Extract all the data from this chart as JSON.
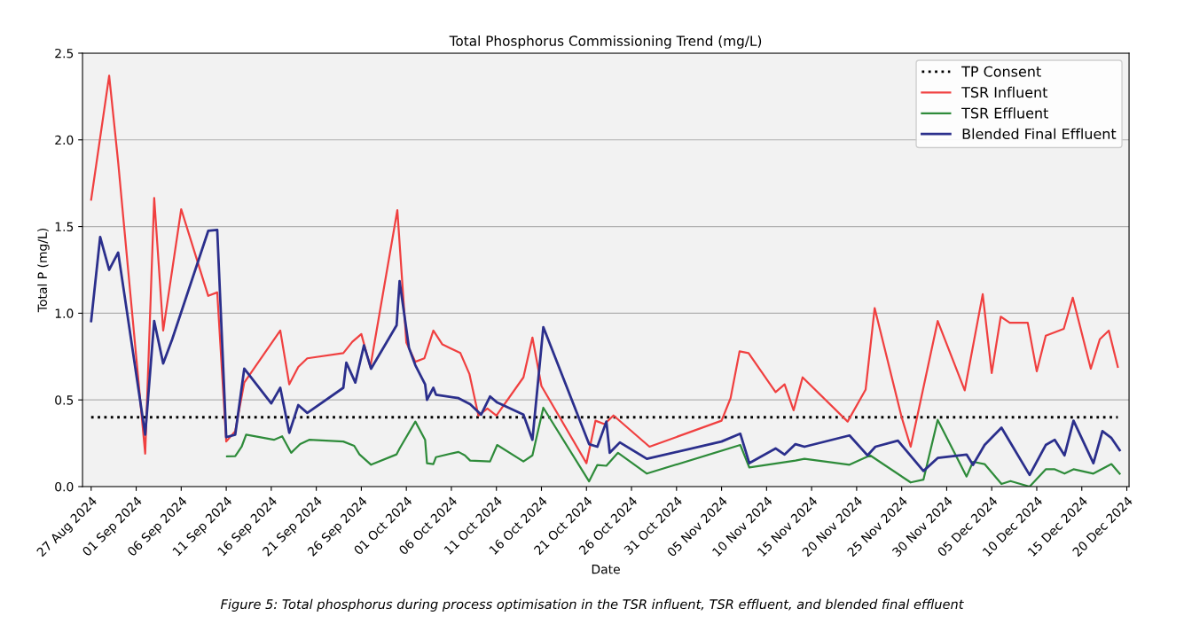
{
  "chart_data": {
    "type": "line",
    "title": "Total Phosphorus Commissioning Trend (mg/L)",
    "xlabel": "Date",
    "ylabel": "Total P (mg/L)",
    "annotations": [
      "Figure 5: Total phosphorus during process optimisation in the TSR influent, TSR effluent, and blended final effluent"
    ],
    "xlim": [
      "2024-08-26T01:00",
      "2024-12-20T06:00"
    ],
    "ylim": [
      0,
      2.5
    ],
    "xticks": [
      {
        "value": "2024-08-27",
        "label": "27 Aug 2024"
      },
      {
        "value": "2024-09-01",
        "label": "01 Sep 2024"
      },
      {
        "value": "2024-09-06",
        "label": "06 Sep 2024"
      },
      {
        "value": "2024-09-11",
        "label": "11 Sep 2024"
      },
      {
        "value": "2024-09-16",
        "label": "16 Sep 2024"
      },
      {
        "value": "2024-09-21",
        "label": "21 Sep 2024"
      },
      {
        "value": "2024-09-26",
        "label": "26 Sep 2024"
      },
      {
        "value": "2024-10-01",
        "label": "01 Oct 2024"
      },
      {
        "value": "2024-10-06",
        "label": "06 Oct 2024"
      },
      {
        "value": "2024-10-11",
        "label": "11 Oct 2024"
      },
      {
        "value": "2024-10-16",
        "label": "16 Oct 2024"
      },
      {
        "value": "2024-10-21",
        "label": "21 Oct 2024"
      },
      {
        "value": "2024-10-26",
        "label": "26 Oct 2024"
      },
      {
        "value": "2024-10-31",
        "label": "31 Oct 2024"
      },
      {
        "value": "2024-11-05",
        "label": "05 Nov 2024"
      },
      {
        "value": "2024-11-10",
        "label": "10 Nov 2024"
      },
      {
        "value": "2024-11-15",
        "label": "15 Nov 2024"
      },
      {
        "value": "2024-11-20",
        "label": "20 Nov 2024"
      },
      {
        "value": "2024-11-25",
        "label": "25 Nov 2024"
      },
      {
        "value": "2024-11-30",
        "label": "30 Nov 2024"
      },
      {
        "value": "2024-12-05",
        "label": "05 Dec 2024"
      },
      {
        "value": "2024-12-10",
        "label": "10 Dec 2024"
      },
      {
        "value": "2024-12-15",
        "label": "15 Dec 2024"
      },
      {
        "value": "2024-12-20",
        "label": "20 Dec 2024"
      }
    ],
    "yticks": [
      {
        "value": 0,
        "label": "0.0"
      },
      {
        "value": 0.5,
        "label": "0.5"
      },
      {
        "value": 1,
        "label": "1.0"
      },
      {
        "value": 1.5,
        "label": "1.5"
      },
      {
        "value": 2,
        "label": "2.0"
      },
      {
        "value": 2.5,
        "label": "2.5"
      }
    ],
    "grid": "y",
    "legend": "top right",
    "marker": "none",
    "series": [
      {
        "name": "TP Consent",
        "color": "#000000",
        "line_style": "dotted",
        "x": [
          "2024-08-27",
          "2024-12-19"
        ],
        "values": [
          0.4,
          0.4
        ]
      },
      {
        "name": "TSR Influent",
        "color": "#f04040",
        "line_style": "solid",
        "x": [
          "2024-08-27",
          "2024-08-29",
          "2024-08-30",
          "2024-09-02",
          "2024-09-03",
          "2024-09-04",
          "2024-09-06",
          "2024-09-09",
          "2024-09-10",
          "2024-09-11",
          "2024-09-12",
          "2024-09-13",
          "2024-09-17",
          "2024-09-18",
          "2024-09-19",
          "2024-09-20",
          "2024-09-24",
          "2024-09-25",
          "2024-09-26",
          "2024-09-27",
          "2024-09-30",
          "2024-10-01",
          "2024-10-02",
          "2024-10-03",
          "2024-10-04",
          "2024-10-05",
          "2024-10-07",
          "2024-10-08",
          "2024-10-09",
          "2024-10-10",
          "2024-10-11",
          "2024-10-14",
          "2024-10-15",
          "2024-10-16",
          "2024-10-21",
          "2024-10-22",
          "2024-10-23",
          "2024-10-24",
          "2024-10-28",
          "2024-11-05",
          "2024-11-06",
          "2024-11-07",
          "2024-11-08",
          "2024-11-11",
          "2024-11-12",
          "2024-11-13",
          "2024-11-14",
          "2024-11-19",
          "2024-11-21",
          "2024-11-22",
          "2024-11-25",
          "2024-11-26",
          "2024-11-27",
          "2024-11-29",
          "2024-12-02",
          "2024-12-04",
          "2024-12-05",
          "2024-12-06",
          "2024-12-07",
          "2024-12-09",
          "2024-12-10",
          "2024-12-11",
          "2024-12-13",
          "2024-12-14",
          "2024-12-16",
          "2024-12-17",
          "2024-12-18",
          "2024-12-19"
        ],
        "values": [
          1.655,
          2.37,
          1.87,
          0.19,
          1.665,
          0.9,
          1.6,
          1.1,
          1.12,
          0.26,
          0.32,
          0.6,
          0.9,
          0.59,
          0.69,
          0.74,
          0.77,
          0.835,
          0.88,
          0.69,
          1.595,
          0.83,
          0.72,
          0.74,
          0.9,
          0.82,
          0.77,
          0.65,
          0.41,
          0.45,
          0.41,
          0.63,
          0.86,
          0.58,
          0.135,
          0.38,
          0.36,
          0.41,
          0.23,
          0.38,
          0.51,
          0.78,
          0.77,
          0.545,
          0.59,
          0.44,
          0.63,
          0.375,
          0.56,
          1.03,
          0.4,
          0.23,
          0.47,
          0.955,
          0.555,
          1.11,
          0.655,
          0.98,
          0.945,
          0.945,
          0.665,
          0.87,
          0.91,
          1.09,
          0.68,
          0.85,
          0.9,
          0.69
        ]
      },
      {
        "name": "TSR Effluent",
        "color": "#2e8b3a",
        "line_style": "solid",
        "x": [
          "2024-09-11T02:00",
          "2024-09-12",
          "2024-09-12T17:00",
          "2024-09-13T05:00",
          "2024-09-16T07:00",
          "2024-09-17T05:00",
          "2024-09-18T05:00",
          "2024-09-19T05:00",
          "2024-09-20T05:00",
          "2024-09-24",
          "2024-09-25T05:00",
          "2024-09-25T19:00",
          "2024-09-27T02:00",
          "2024-09-29T22:00",
          "2024-09-30T06:00",
          "2024-10-02",
          "2024-10-03T02:00",
          "2024-10-03T07:00",
          "2024-10-04",
          "2024-10-04T07:00",
          "2024-10-06T19:00",
          "2024-10-07T12:00",
          "2024-10-08T02:00",
          "2024-10-10T07:00",
          "2024-10-11T02:00",
          "2024-10-14",
          "2024-10-15",
          "2024-10-16T05:00",
          "2024-10-21T07:00",
          "2024-10-22T05:00",
          "2024-10-23T05:00",
          "2024-10-24T12:00",
          "2024-10-27T17:00",
          "2024-11-07T02:00",
          "2024-11-08T02:00",
          "2024-11-13T05:00",
          "2024-11-14T05:00",
          "2024-11-19T05:00",
          "2024-11-21T12:00",
          "2024-11-26",
          "2024-11-27T10:00",
          "2024-11-29",
          "2024-12-02T05:00",
          "2024-12-02T22:00",
          "2024-12-04T05:00",
          "2024-12-06T02:00",
          "2024-12-07T02:00",
          "2024-12-09T05:00",
          "2024-12-11",
          "2024-12-12",
          "2024-12-13T02:00",
          "2024-12-14T02:00",
          "2024-12-16T07:00",
          "2024-12-18T07:00",
          "2024-12-19T05:00"
        ],
        "values": [
          0.174,
          0.176,
          0.23,
          0.3,
          0.27,
          0.29,
          0.195,
          0.245,
          0.27,
          0.26,
          0.235,
          0.186,
          0.126,
          0.186,
          0.22,
          0.375,
          0.27,
          0.135,
          0.13,
          0.17,
          0.2,
          0.18,
          0.15,
          0.145,
          0.24,
          0.145,
          0.18,
          0.455,
          0.03,
          0.125,
          0.12,
          0.195,
          0.075,
          0.24,
          0.11,
          0.15,
          0.16,
          0.126,
          0.18,
          0.024,
          0.04,
          0.385,
          0.058,
          0.143,
          0.13,
          0.015,
          0.032,
          0.0,
          0.1,
          0.1,
          0.075,
          0.1,
          0.075,
          0.13,
          0.075
        ]
      },
      {
        "name": "Blended Final Effluent",
        "color": "#2b2f8c",
        "line_style": "solid",
        "x": [
          "2024-08-27",
          "2024-08-28",
          "2024-08-29",
          "2024-08-30",
          "2024-09-02",
          "2024-09-03",
          "2024-09-04",
          "2024-09-05",
          "2024-09-09",
          "2024-09-10",
          "2024-09-11",
          "2024-09-12",
          "2024-09-13",
          "2024-09-16",
          "2024-09-17",
          "2024-09-18",
          "2024-09-19",
          "2024-09-20",
          "2024-09-24",
          "2024-09-24T08:00",
          "2024-09-25T08:00",
          "2024-09-26T07:00",
          "2024-09-27T02:00",
          "2024-09-29T22:00",
          "2024-09-30T06:00",
          "2024-10-01T07:00",
          "2024-10-02",
          "2024-10-03T02:00",
          "2024-10-03T07:00",
          "2024-10-04",
          "2024-10-04T07:00",
          "2024-10-06T19:00",
          "2024-10-08T02:00",
          "2024-10-09T07:00",
          "2024-10-10T07:00",
          "2024-10-11T02:00",
          "2024-10-14",
          "2024-10-15",
          "2024-10-16T05:00",
          "2024-10-21T07:00",
          "2024-10-22T05:00",
          "2024-10-23T05:00",
          "2024-10-23T14:00",
          "2024-10-24T17:00",
          "2024-10-27T17:00",
          "2024-11-05",
          "2024-11-07T02:00",
          "2024-11-08T02:00",
          "2024-11-11",
          "2024-11-12",
          "2024-11-13T05:00",
          "2024-11-14T05:00",
          "2024-11-19T05:00",
          "2024-11-21T05:00",
          "2024-11-22T02:00",
          "2024-11-24T14:00",
          "2024-11-27T10:00",
          "2024-11-29",
          "2024-12-02T05:00",
          "2024-12-02T22:00",
          "2024-12-04T05:00",
          "2024-12-06T02:00",
          "2024-12-09T05:00",
          "2024-12-11",
          "2024-12-12",
          "2024-12-13T02:00",
          "2024-12-14T02:00",
          "2024-12-16T07:00",
          "2024-12-17T07:00",
          "2024-12-18T07:00",
          "2024-12-19T05:00"
        ],
        "values": [
          0.955,
          1.44,
          1.25,
          1.35,
          0.3,
          0.955,
          0.71,
          0.85,
          1.475,
          1.48,
          0.285,
          0.3,
          0.68,
          0.48,
          0.57,
          0.31,
          0.47,
          0.425,
          0.57,
          0.715,
          0.6,
          0.815,
          0.68,
          0.93,
          1.185,
          0.8,
          0.7,
          0.59,
          0.5,
          0.57,
          0.53,
          0.51,
          0.475,
          0.415,
          0.52,
          0.485,
          0.415,
          0.27,
          0.92,
          0.245,
          0.23,
          0.375,
          0.195,
          0.255,
          0.16,
          0.26,
          0.305,
          0.135,
          0.22,
          0.185,
          0.245,
          0.23,
          0.295,
          0.18,
          0.23,
          0.265,
          0.09,
          0.165,
          0.185,
          0.125,
          0.24,
          0.34,
          0.067,
          0.24,
          0.27,
          0.18,
          0.38,
          0.135,
          0.32,
          0.28,
          0.21
        ]
      }
    ]
  }
}
